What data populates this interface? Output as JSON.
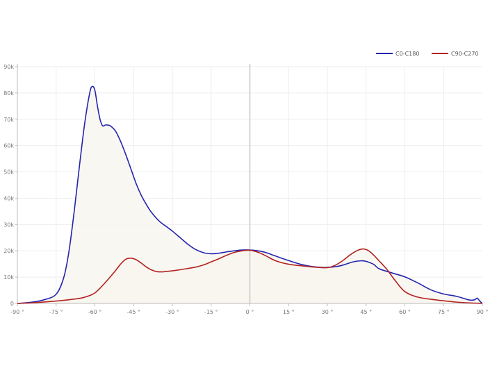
{
  "chart_data": {
    "type": "area",
    "title": "",
    "xlabel": "",
    "ylabel": "",
    "xlim": [
      -90,
      90
    ],
    "ylim": [
      0,
      90000
    ],
    "grid": true,
    "legend_placement": "top-right",
    "x_tick_values": [
      -90,
      -75,
      -60,
      -45,
      -30,
      -15,
      0,
      15,
      30,
      45,
      60,
      75,
      90
    ],
    "x_tick_labels": [
      "-90 °",
      "-75 °",
      "-60 °",
      "-45 °",
      "-30 °",
      "-15 °",
      "0 °",
      "15 °",
      "30 °",
      "45 °",
      "60 °",
      "75 °",
      "90 °"
    ],
    "y_tick_values": [
      0,
      10000,
      20000,
      30000,
      40000,
      50000,
      60000,
      70000,
      80000,
      90000
    ],
    "y_tick_labels": [
      "0",
      "10k",
      "20k",
      "30k",
      "40k",
      "50k",
      "60k",
      "70k",
      "80k",
      "90k"
    ],
    "reference_line_x": 0,
    "fill_color": "#f8f6ef",
    "series": [
      {
        "name": "C0-C180",
        "color": "#2424b0",
        "x": [
          -90,
          -85,
          -80,
          -75,
          -72,
          -70,
          -68,
          -66,
          -64,
          -62,
          -61,
          -60,
          -59,
          -58,
          -57,
          -56,
          -55,
          -54,
          -52,
          -50,
          -48,
          -46,
          -44,
          -42,
          -40,
          -38,
          -35,
          -32,
          -30,
          -27,
          -24,
          -21,
          -18,
          -15,
          -12,
          -9,
          -6,
          -3,
          0,
          3,
          6,
          10,
          15,
          20,
          25,
          30,
          35,
          40,
          43,
          45,
          48,
          50,
          55,
          60,
          65,
          70,
          75,
          80,
          85,
          87,
          88,
          89,
          90
        ],
        "y": [
          0,
          400,
          1300,
          3500,
          10000,
          20000,
          35000,
          52000,
          68000,
          80000,
          82500,
          81000,
          75000,
          70000,
          67500,
          67800,
          67800,
          67500,
          65500,
          61500,
          56500,
          51000,
          45500,
          41000,
          37500,
          34500,
          31200,
          29000,
          27500,
          25000,
          22500,
          20500,
          19300,
          18900,
          19100,
          19600,
          20000,
          20300,
          20300,
          20000,
          19400,
          18000,
          16300,
          14800,
          13900,
          13700,
          14300,
          15800,
          16200,
          16000,
          14800,
          13200,
          11600,
          10100,
          7800,
          5200,
          3600,
          2700,
          1300,
          1400,
          2000,
          900,
          0
        ]
      },
      {
        "name": "C90-C270",
        "color": "#b22222",
        "x": [
          -90,
          -85,
          -80,
          -75,
          -70,
          -65,
          -62,
          -60,
          -58,
          -55,
          -52,
          -50,
          -48,
          -46,
          -44,
          -42,
          -40,
          -38,
          -36,
          -34,
          -32,
          -30,
          -27,
          -24,
          -21,
          -18,
          -15,
          -12,
          -9,
          -6,
          -3,
          0,
          3,
          6,
          10,
          15,
          20,
          25,
          30,
          33,
          36,
          39,
          42,
          44,
          46,
          48,
          50,
          53,
          56,
          60,
          65,
          70,
          75,
          80,
          85,
          90
        ],
        "y": [
          0,
          200,
          500,
          900,
          1400,
          2100,
          3000,
          4000,
          5800,
          9000,
          12500,
          15000,
          16800,
          17200,
          16600,
          15300,
          13800,
          12700,
          12100,
          12000,
          12200,
          12400,
          12800,
          13300,
          13800,
          14600,
          15800,
          17000,
          18300,
          19400,
          20000,
          20200,
          19500,
          18200,
          16200,
          14900,
          14300,
          13800,
          13600,
          14500,
          16300,
          18600,
          20300,
          20700,
          20000,
          18300,
          16200,
          13000,
          9000,
          4500,
          2400,
          1600,
          1000,
          500,
          200,
          0
        ]
      }
    ]
  }
}
